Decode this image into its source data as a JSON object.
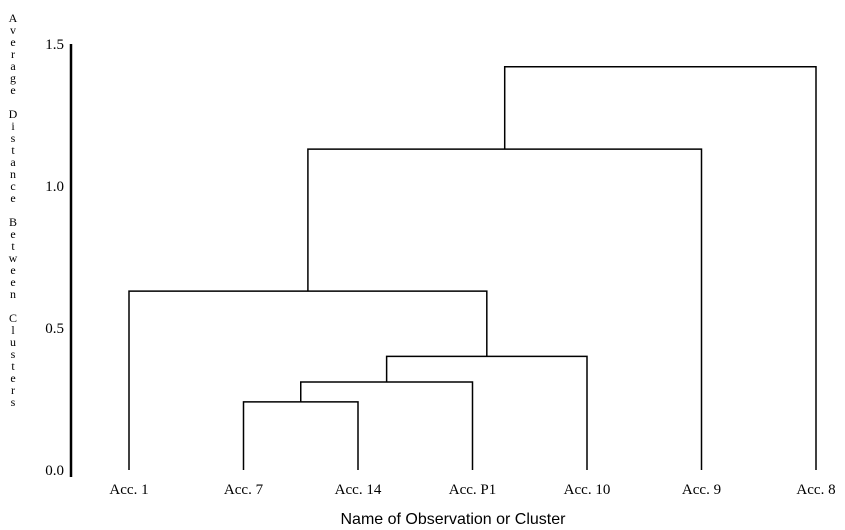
{
  "chart_data": {
    "type": "dendrogram",
    "title": "",
    "xlabel": "Name of Observation or Cluster",
    "ylabel": "Average Distance Between Clusters",
    "ylim": [
      0,
      1.5
    ],
    "y_ticks": [
      "0.0",
      "0.5",
      "1.0",
      "1.5"
    ],
    "leaves": [
      "Acc. 1",
      "Acc. 7",
      "Acc. 14",
      "Acc. P1",
      "Acc. 10",
      "Acc. 9",
      "Acc. 8"
    ],
    "merges": [
      {
        "id": "c1",
        "left": "Acc. 7",
        "right": "Acc. 14",
        "height": 0.24
      },
      {
        "id": "c2",
        "left": "c1",
        "right": "Acc. P1",
        "height": 0.31
      },
      {
        "id": "c3",
        "left": "c2",
        "right": "Acc. 10",
        "height": 0.4
      },
      {
        "id": "c4",
        "left": "Acc. 1",
        "right": "c3",
        "height": 0.63
      },
      {
        "id": "c5",
        "left": "c4",
        "right": "Acc. 9",
        "height": 1.13
      },
      {
        "id": "c6",
        "left": "c5",
        "right": "Acc. 8",
        "height": 1.42
      }
    ],
    "grid": false,
    "legend": "none"
  }
}
